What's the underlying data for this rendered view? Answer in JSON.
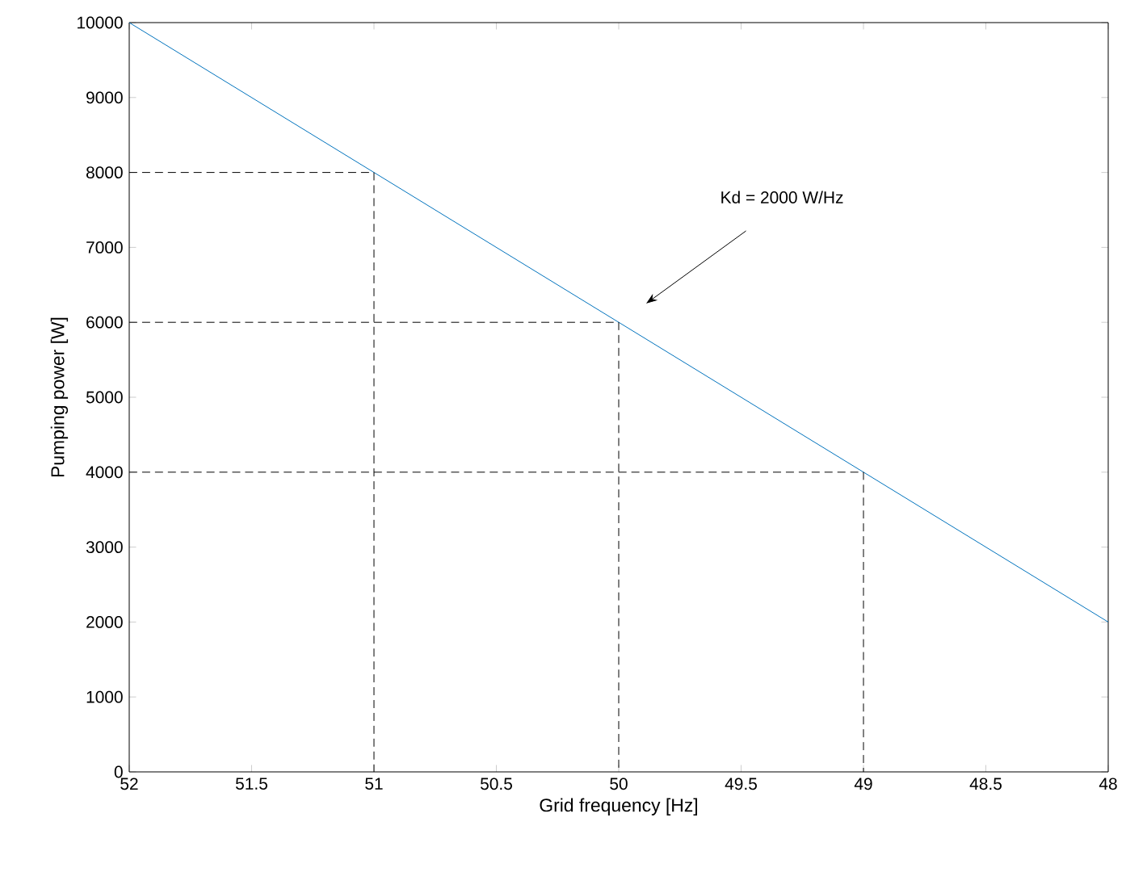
{
  "chart_data": {
    "type": "line",
    "xlabel": "Grid frequency [Hz]",
    "ylabel": "Pumping power [W]",
    "xlim": [
      52,
      48
    ],
    "ylim": [
      0,
      10000
    ],
    "xticks": [
      52,
      51.5,
      51,
      50.5,
      50,
      49.5,
      49,
      48.5,
      48
    ],
    "yticks": [
      0,
      1000,
      2000,
      3000,
      4000,
      5000,
      6000,
      7000,
      8000,
      9000,
      10000
    ],
    "grid": false,
    "series": [
      {
        "color": "#0072bd",
        "x": [
          52,
          48
        ],
        "values": [
          10000,
          2000
        ],
        "line_style": "solid"
      },
      {
        "color": "#000000",
        "x": [
          52,
          51,
          51
        ],
        "values": [
          8000,
          8000,
          0
        ],
        "line_style": "dashed"
      },
      {
        "color": "#000000",
        "x": [
          52,
          50,
          50
        ],
        "values": [
          6000,
          6000,
          0
        ],
        "line_style": "dashed"
      },
      {
        "color": "#000000",
        "x": [
          52,
          49,
          49
        ],
        "values": [
          4000,
          4000,
          0
        ],
        "line_style": "dashed"
      }
    ],
    "annotations": [
      "Kd = 2000 W/Hz"
    ]
  }
}
